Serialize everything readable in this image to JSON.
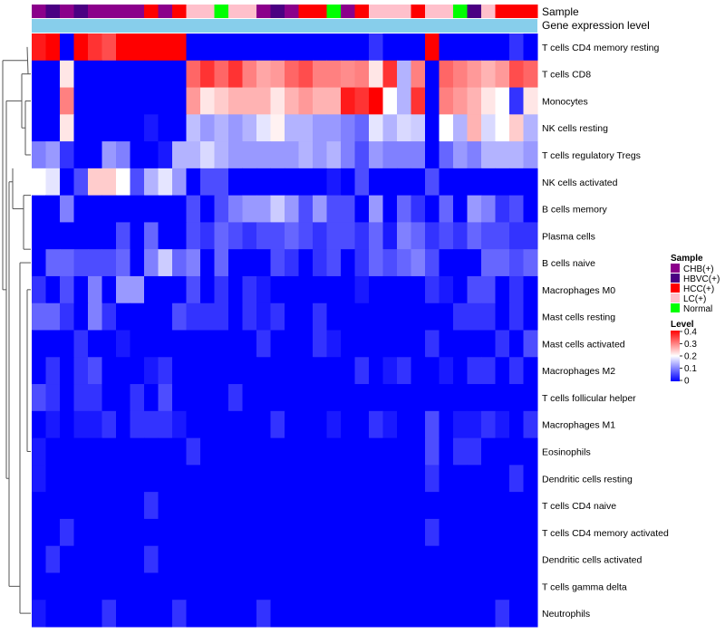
{
  "chart_data": {
    "type": "heatmap",
    "annotation_labels": [
      "Sample",
      "Gene expression level"
    ],
    "rows": [
      "T cells CD4 memory resting",
      "T cells CD8",
      "Monocytes",
      "NK cells resting",
      "T cells regulatory  Tregs",
      "NK cells activated",
      "B cells memory",
      "Plasma cells",
      "B cells naive",
      "Macrophages M0",
      "Mast cells resting",
      "Mast cells activated",
      "Macrophages M2",
      "T cells follicular helper",
      "Macrophages M1",
      "Eosinophils",
      "Dendritic cells resting",
      "T cells CD4 naive",
      "T cells CD4 memory activated",
      "Dendritic cells activated",
      "T cells gamma delta",
      "Neutrophils"
    ],
    "sample_groups": [
      "CHB",
      "HBVC",
      "CHB",
      "HBVC",
      "CHB",
      "CHB",
      "CHB",
      "CHB",
      "HCC",
      "CHB",
      "HCC",
      "LC",
      "LC",
      "Normal",
      "LC",
      "LC",
      "CHB",
      "HBVC",
      "CHB",
      "HCC",
      "HCC",
      "Normal",
      "CHB",
      "HCC",
      "LC",
      "LC",
      "LC",
      "HCC",
      "LC",
      "LC",
      "Normal",
      "HBVC",
      "LC",
      "HCC",
      "HCC",
      "HCC"
    ],
    "values": [
      [
        0.38,
        0.4,
        0.0,
        0.4,
        0.36,
        0.34,
        0.4,
        0.4,
        0.4,
        0.4,
        0.4,
        0.0,
        0.0,
        0.0,
        0.0,
        0.0,
        0.0,
        0.0,
        0.0,
        0.0,
        0.0,
        0.0,
        0.0,
        0.0,
        0.04,
        0.0,
        0.0,
        0.0,
        0.4,
        0.0,
        0.0,
        0.0,
        0.0,
        0.0,
        0.04,
        0.0
      ],
      [
        0.0,
        0.0,
        0.22,
        0.0,
        0.0,
        0.0,
        0.0,
        0.0,
        0.0,
        0.0,
        0.0,
        0.32,
        0.36,
        0.32,
        0.36,
        0.3,
        0.27,
        0.28,
        0.32,
        0.34,
        0.3,
        0.3,
        0.29,
        0.3,
        0.22,
        0.36,
        0.14,
        0.3,
        0.0,
        0.32,
        0.3,
        0.28,
        0.26,
        0.28,
        0.34,
        0.32
      ],
      [
        0.0,
        0.0,
        0.3,
        0.0,
        0.0,
        0.0,
        0.0,
        0.0,
        0.0,
        0.0,
        0.0,
        0.28,
        0.22,
        0.24,
        0.26,
        0.26,
        0.26,
        0.22,
        0.26,
        0.28,
        0.26,
        0.26,
        0.38,
        0.36,
        0.4,
        0.2,
        0.14,
        0.36,
        0.0,
        0.3,
        0.28,
        0.26,
        0.22,
        0.2,
        0.04,
        0.22
      ],
      [
        0.0,
        0.0,
        0.22,
        0.0,
        0.0,
        0.0,
        0.0,
        0.0,
        0.02,
        0.0,
        0.0,
        0.15,
        0.12,
        0.14,
        0.12,
        0.14,
        0.18,
        0.21,
        0.14,
        0.14,
        0.12,
        0.12,
        0.1,
        0.08,
        0.18,
        0.14,
        0.17,
        0.16,
        0.0,
        0.2,
        0.14,
        0.26,
        0.17,
        0.2,
        0.24,
        0.14
      ],
      [
        0.1,
        0.12,
        0.04,
        0.0,
        0.0,
        0.12,
        0.1,
        0.0,
        0.0,
        0.02,
        0.14,
        0.14,
        0.17,
        0.14,
        0.12,
        0.12,
        0.12,
        0.12,
        0.12,
        0.14,
        0.12,
        0.14,
        0.1,
        0.06,
        0.12,
        0.1,
        0.1,
        0.1,
        0.0,
        0.08,
        0.12,
        0.1,
        0.14,
        0.14,
        0.14,
        0.12
      ],
      [
        0.2,
        0.18,
        0.0,
        0.06,
        0.24,
        0.24,
        0.2,
        0.06,
        0.14,
        0.18,
        0.12,
        0.0,
        0.06,
        0.06,
        0.0,
        0.0,
        0.0,
        0.0,
        0.0,
        0.0,
        0.0,
        0.02,
        0.0,
        0.06,
        0.0,
        0.0,
        0.0,
        0.0,
        0.06,
        0.0,
        0.0,
        0.0,
        0.0,
        0.0,
        0.0,
        0.0
      ],
      [
        0.0,
        0.0,
        0.1,
        0.0,
        0.0,
        0.0,
        0.0,
        0.0,
        0.0,
        0.0,
        0.0,
        0.06,
        0.0,
        0.06,
        0.1,
        0.12,
        0.12,
        0.16,
        0.12,
        0.06,
        0.12,
        0.06,
        0.06,
        0.0,
        0.12,
        0.0,
        0.08,
        0.04,
        0.0,
        0.08,
        0.0,
        0.12,
        0.1,
        0.04,
        0.06,
        0.0
      ],
      [
        0.0,
        0.0,
        0.0,
        0.0,
        0.0,
        0.0,
        0.06,
        0.0,
        0.08,
        0.0,
        0.0,
        0.06,
        0.04,
        0.08,
        0.06,
        0.04,
        0.06,
        0.06,
        0.08,
        0.06,
        0.04,
        0.06,
        0.06,
        0.04,
        0.08,
        0.02,
        0.1,
        0.08,
        0.04,
        0.06,
        0.04,
        0.08,
        0.06,
        0.06,
        0.04,
        0.04
      ],
      [
        0.0,
        0.08,
        0.08,
        0.06,
        0.06,
        0.06,
        0.08,
        0.0,
        0.1,
        0.16,
        0.08,
        0.1,
        0.0,
        0.08,
        0.0,
        0.0,
        0.0,
        0.06,
        0.04,
        0.0,
        0.04,
        0.06,
        0.0,
        0.04,
        0.08,
        0.06,
        0.08,
        0.1,
        0.06,
        0.0,
        0.0,
        0.0,
        0.08,
        0.08,
        0.06,
        0.08
      ],
      [
        0.04,
        0.0,
        0.06,
        0.0,
        0.1,
        0.0,
        0.12,
        0.12,
        0.0,
        0.0,
        0.0,
        0.06,
        0.0,
        0.04,
        0.0,
        0.04,
        0.02,
        0.0,
        0.0,
        0.0,
        0.0,
        0.0,
        0.0,
        0.02,
        0.0,
        0.0,
        0.0,
        0.0,
        0.04,
        0.02,
        0.0,
        0.06,
        0.06,
        0.0,
        0.04,
        0.0
      ],
      [
        0.08,
        0.08,
        0.04,
        0.0,
        0.1,
        0.04,
        0.0,
        0.0,
        0.0,
        0.0,
        0.06,
        0.04,
        0.04,
        0.04,
        0.0,
        0.04,
        0.02,
        0.04,
        0.0,
        0.0,
        0.04,
        0.0,
        0.0,
        0.0,
        0.0,
        0.0,
        0.0,
        0.0,
        0.0,
        0.0,
        0.04,
        0.04,
        0.04,
        0.0,
        0.04,
        0.0
      ],
      [
        0.0,
        0.0,
        0.0,
        0.04,
        0.0,
        0.0,
        0.02,
        0.0,
        0.0,
        0.0,
        0.0,
        0.0,
        0.0,
        0.0,
        0.0,
        0.0,
        0.04,
        0.0,
        0.0,
        0.0,
        0.04,
        0.02,
        0.0,
        0.0,
        0.0,
        0.0,
        0.0,
        0.0,
        0.04,
        0.0,
        0.0,
        0.0,
        0.0,
        0.04,
        0.0,
        0.06
      ],
      [
        0.0,
        0.04,
        0.0,
        0.04,
        0.06,
        0.0,
        0.0,
        0.0,
        0.02,
        0.04,
        0.0,
        0.0,
        0.0,
        0.0,
        0.0,
        0.0,
        0.0,
        0.0,
        0.0,
        0.0,
        0.0,
        0.0,
        0.0,
        0.04,
        0.0,
        0.02,
        0.04,
        0.0,
        0.0,
        0.02,
        0.0,
        0.04,
        0.04,
        0.0,
        0.04,
        0.0
      ],
      [
        0.06,
        0.04,
        0.0,
        0.04,
        0.04,
        0.0,
        0.0,
        0.04,
        0.0,
        0.06,
        0.0,
        0.0,
        0.0,
        0.0,
        0.04,
        0.0,
        0.0,
        0.0,
        0.0,
        0.0,
        0.0,
        0.0,
        0.0,
        0.0,
        0.0,
        0.0,
        0.0,
        0.0,
        0.0,
        0.0,
        0.0,
        0.0,
        0.0,
        0.0,
        0.0,
        0.0
      ],
      [
        0.0,
        0.02,
        0.0,
        0.02,
        0.02,
        0.04,
        0.0,
        0.04,
        0.04,
        0.04,
        0.02,
        0.0,
        0.0,
        0.0,
        0.0,
        0.0,
        0.0,
        0.04,
        0.0,
        0.0,
        0.0,
        0.02,
        0.0,
        0.0,
        0.04,
        0.02,
        0.0,
        0.0,
        0.06,
        0.0,
        0.02,
        0.02,
        0.04,
        0.02,
        0.0,
        0.04
      ],
      [
        0.02,
        0.0,
        0.0,
        0.0,
        0.0,
        0.0,
        0.0,
        0.0,
        0.0,
        0.0,
        0.0,
        0.04,
        0.0,
        0.0,
        0.0,
        0.0,
        0.0,
        0.0,
        0.0,
        0.0,
        0.0,
        0.0,
        0.0,
        0.0,
        0.0,
        0.0,
        0.0,
        0.0,
        0.06,
        0.0,
        0.04,
        0.04,
        0.0,
        0.0,
        0.0,
        0.0
      ],
      [
        0.02,
        0.0,
        0.0,
        0.0,
        0.0,
        0.0,
        0.0,
        0.0,
        0.0,
        0.0,
        0.0,
        0.0,
        0.0,
        0.0,
        0.0,
        0.0,
        0.0,
        0.0,
        0.0,
        0.0,
        0.0,
        0.0,
        0.0,
        0.0,
        0.0,
        0.0,
        0.0,
        0.0,
        0.04,
        0.0,
        0.0,
        0.0,
        0.0,
        0.0,
        0.04,
        0.0
      ],
      [
        0.0,
        0.0,
        0.0,
        0.0,
        0.0,
        0.0,
        0.0,
        0.0,
        0.04,
        0.0,
        0.0,
        0.0,
        0.0,
        0.0,
        0.0,
        0.0,
        0.0,
        0.0,
        0.0,
        0.0,
        0.0,
        0.0,
        0.0,
        0.0,
        0.0,
        0.0,
        0.0,
        0.0,
        0.0,
        0.0,
        0.0,
        0.0,
        0.0,
        0.0,
        0.0,
        0.0
      ],
      [
        0.0,
        0.0,
        0.04,
        0.0,
        0.0,
        0.0,
        0.0,
        0.0,
        0.0,
        0.0,
        0.0,
        0.0,
        0.0,
        0.0,
        0.0,
        0.0,
        0.0,
        0.0,
        0.0,
        0.0,
        0.0,
        0.0,
        0.0,
        0.0,
        0.0,
        0.0,
        0.0,
        0.0,
        0.04,
        0.0,
        0.0,
        0.0,
        0.0,
        0.0,
        0.0,
        0.0
      ],
      [
        0.0,
        0.04,
        0.0,
        0.0,
        0.0,
        0.0,
        0.0,
        0.0,
        0.04,
        0.0,
        0.0,
        0.0,
        0.0,
        0.0,
        0.0,
        0.0,
        0.0,
        0.0,
        0.0,
        0.0,
        0.0,
        0.0,
        0.0,
        0.0,
        0.0,
        0.0,
        0.0,
        0.0,
        0.0,
        0.0,
        0.0,
        0.0,
        0.0,
        0.0,
        0.0,
        0.0
      ],
      [
        0.0,
        0.0,
        0.0,
        0.0,
        0.0,
        0.0,
        0.0,
        0.0,
        0.0,
        0.0,
        0.0,
        0.0,
        0.0,
        0.0,
        0.0,
        0.0,
        0.0,
        0.0,
        0.0,
        0.0,
        0.0,
        0.0,
        0.0,
        0.0,
        0.0,
        0.0,
        0.0,
        0.0,
        0.0,
        0.0,
        0.0,
        0.0,
        0.0,
        0.0,
        0.0,
        0.0
      ],
      [
        0.02,
        0.0,
        0.0,
        0.0,
        0.0,
        0.04,
        0.0,
        0.0,
        0.0,
        0.0,
        0.04,
        0.0,
        0.0,
        0.0,
        0.0,
        0.0,
        0.04,
        0.0,
        0.0,
        0.0,
        0.0,
        0.0,
        0.0,
        0.0,
        0.0,
        0.0,
        0.0,
        0.0,
        0.0,
        0.0,
        0.0,
        0.0,
        0.0,
        0.04,
        0.0,
        0.0
      ]
    ],
    "gene_expression_band_color": "#87ceeb",
    "legend": {
      "sample": {
        "title": "Sample",
        "items": [
          {
            "label": "CHB(+)",
            "color": "#8b008b"
          },
          {
            "label": "HBVC(+)",
            "color": "#4b0082"
          },
          {
            "label": "HCC(+)",
            "color": "#ff0000"
          },
          {
            "label": "LC(+)",
            "color": "#ffc0cb"
          },
          {
            "label": "Normal",
            "color": "#00ff00"
          }
        ]
      },
      "level": {
        "title": "Level",
        "ticks": [
          "0.4",
          "0.3",
          "0.2",
          "0.1",
          "0"
        ],
        "range": [
          0,
          0.4
        ],
        "low_color": "#0000ff",
        "mid_color": "#ffffff",
        "high_color": "#ff0000"
      }
    }
  }
}
